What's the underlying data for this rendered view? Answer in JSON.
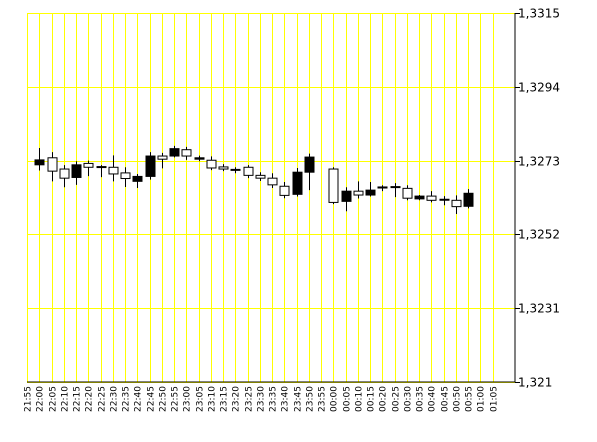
{
  "chart_data": {
    "type": "candlestick",
    "title": "",
    "xlabel": "",
    "ylabel": "",
    "ylim": [
      1.321,
      1.3315
    ],
    "y_ticks": [
      "1,3315",
      "1,3294",
      "1,3273",
      "1,3252",
      "1,3231",
      "1,321"
    ],
    "y_tick_values": [
      1.3315,
      1.3294,
      1.3273,
      1.3252,
      1.3231,
      1.321
    ],
    "x_ticks": [
      "21:55",
      "22:00",
      "22:05",
      "22:10",
      "22:15",
      "22:20",
      "22:25",
      "22:30",
      "22:35",
      "22:40",
      "22:45",
      "22:50",
      "22:55",
      "23:00",
      "23:05",
      "23:10",
      "23:15",
      "23:20",
      "23:25",
      "23:30",
      "23:35",
      "23:40",
      "23:45",
      "23:50",
      "23:55",
      "00:00",
      "00:05",
      "00:10",
      "00:15",
      "00:20",
      "00:25",
      "00:30",
      "00:35",
      "00:40",
      "00:45",
      "00:50",
      "00:55",
      "01:00",
      "01:05"
    ],
    "grid": true,
    "grid_color": "#ffff00",
    "up_color": "#ffffff",
    "down_color": "#000000",
    "candles": [
      {
        "time": "22:00",
        "open": 1.32732,
        "high": 1.32766,
        "low": 1.32702,
        "close": 1.32718
      },
      {
        "time": "22:05",
        "open": 1.327,
        "high": 1.32754,
        "low": 1.32671,
        "close": 1.32738
      },
      {
        "time": "22:10",
        "open": 1.3268,
        "high": 1.32717,
        "low": 1.32654,
        "close": 1.32706
      },
      {
        "time": "22:15",
        "open": 1.32718,
        "high": 1.32728,
        "low": 1.32661,
        "close": 1.32682
      },
      {
        "time": "22:20",
        "open": 1.32711,
        "high": 1.3273,
        "low": 1.32686,
        "close": 1.32722
      },
      {
        "time": "22:25",
        "open": 1.32713,
        "high": 1.32717,
        "low": 1.32683,
        "close": 1.32711
      },
      {
        "time": "22:30",
        "open": 1.32692,
        "high": 1.32745,
        "low": 1.32671,
        "close": 1.32711
      },
      {
        "time": "22:35",
        "open": 1.32679,
        "high": 1.32711,
        "low": 1.32655,
        "close": 1.32695
      },
      {
        "time": "22:40",
        "open": 1.32685,
        "high": 1.32692,
        "low": 1.32652,
        "close": 1.32671
      },
      {
        "time": "22:45",
        "open": 1.32743,
        "high": 1.32754,
        "low": 1.32676,
        "close": 1.32685
      },
      {
        "time": "22:50",
        "open": 1.32734,
        "high": 1.32752,
        "low": 1.32708,
        "close": 1.32743
      },
      {
        "time": "22:55",
        "open": 1.32764,
        "high": 1.32772,
        "low": 1.32739,
        "close": 1.32743
      },
      {
        "time": "23:00",
        "open": 1.32743,
        "high": 1.32769,
        "low": 1.32732,
        "close": 1.32761
      },
      {
        "time": "23:05",
        "open": 1.32738,
        "high": 1.32744,
        "low": 1.32728,
        "close": 1.32734
      },
      {
        "time": "23:10",
        "open": 1.32709,
        "high": 1.32742,
        "low": 1.32703,
        "close": 1.32731
      },
      {
        "time": "23:15",
        "open": 1.32706,
        "high": 1.3272,
        "low": 1.327,
        "close": 1.32712
      },
      {
        "time": "23:20",
        "open": 1.32705,
        "high": 1.32711,
        "low": 1.32694,
        "close": 1.32705
      },
      {
        "time": "23:25",
        "open": 1.32688,
        "high": 1.32717,
        "low": 1.3268,
        "close": 1.32711
      },
      {
        "time": "23:30",
        "open": 1.3268,
        "high": 1.32697,
        "low": 1.32672,
        "close": 1.32688
      },
      {
        "time": "23:35",
        "open": 1.32661,
        "high": 1.32694,
        "low": 1.32652,
        "close": 1.3268
      },
      {
        "time": "23:40",
        "open": 1.32631,
        "high": 1.32669,
        "low": 1.32623,
        "close": 1.32657
      },
      {
        "time": "23:45",
        "open": 1.32697,
        "high": 1.32709,
        "low": 1.32628,
        "close": 1.32634
      },
      {
        "time": "23:50",
        "open": 1.3274,
        "high": 1.3275,
        "low": 1.32646,
        "close": 1.32697
      },
      {
        "time": "00:00",
        "open": 1.32611,
        "high": 1.32711,
        "low": 1.32606,
        "close": 1.32706
      },
      {
        "time": "00:05",
        "open": 1.32643,
        "high": 1.32654,
        "low": 1.32586,
        "close": 1.32614
      },
      {
        "time": "00:10",
        "open": 1.32632,
        "high": 1.32671,
        "low": 1.32622,
        "close": 1.32643
      },
      {
        "time": "00:15",
        "open": 1.32646,
        "high": 1.32669,
        "low": 1.32628,
        "close": 1.32632
      },
      {
        "time": "00:20",
        "open": 1.32655,
        "high": 1.3266,
        "low": 1.32643,
        "close": 1.32652
      },
      {
        "time": "00:25",
        "open": 1.32654,
        "high": 1.32666,
        "low": 1.32626,
        "close": 1.32656
      },
      {
        "time": "00:30",
        "open": 1.32623,
        "high": 1.3266,
        "low": 1.32617,
        "close": 1.32651
      },
      {
        "time": "00:35",
        "open": 1.32629,
        "high": 1.32632,
        "low": 1.32617,
        "close": 1.32621
      },
      {
        "time": "00:40",
        "open": 1.32617,
        "high": 1.32643,
        "low": 1.32611,
        "close": 1.32629
      },
      {
        "time": "00:45",
        "open": 1.32619,
        "high": 1.32629,
        "low": 1.32603,
        "close": 1.3262
      },
      {
        "time": "00:50",
        "open": 1.32599,
        "high": 1.32631,
        "low": 1.32578,
        "close": 1.32617
      },
      {
        "time": "00:55",
        "open": 1.32637,
        "high": 1.32649,
        "low": 1.32594,
        "close": 1.326
      }
    ]
  }
}
